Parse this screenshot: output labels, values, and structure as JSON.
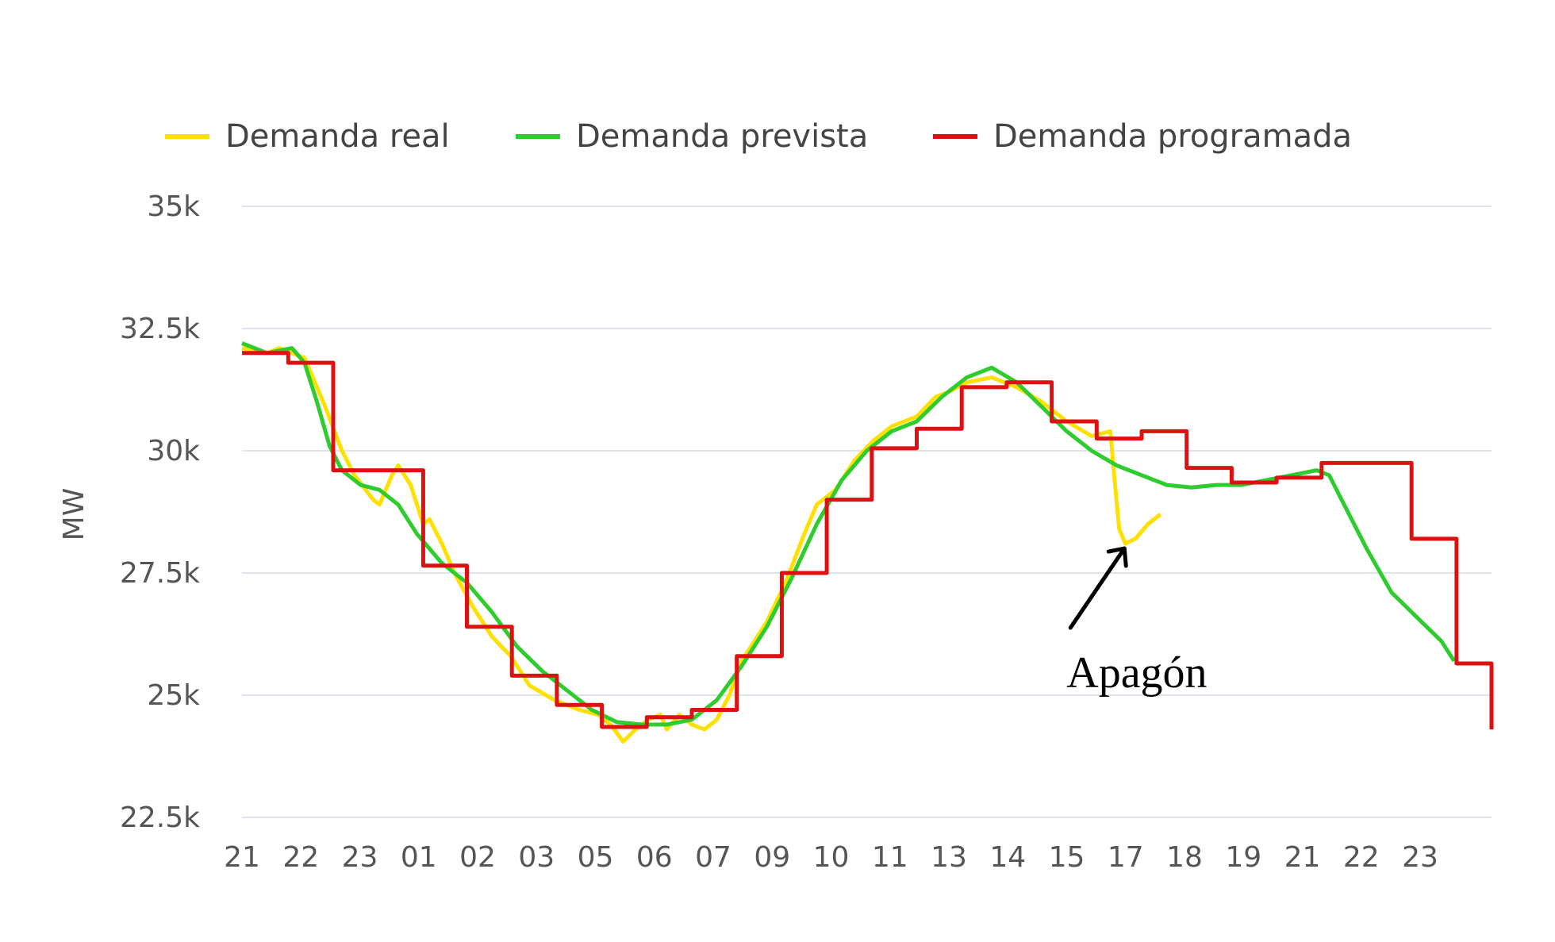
{
  "chart_data": {
    "type": "line",
    "xlabel": "",
    "ylabel": "MW",
    "ylim": [
      22500,
      35000
    ],
    "y_ticks": [
      22500,
      25000,
      27500,
      30000,
      32500,
      35000
    ],
    "y_tick_labels": [
      "22.5k",
      "25k",
      "27.5k",
      "30k",
      "32.5k",
      "35k"
    ],
    "x_tick_labels": [
      "21",
      "22",
      "23",
      "01",
      "02",
      "03",
      "05",
      "06",
      "07",
      "09",
      "10",
      "11",
      "13",
      "14",
      "15",
      "17",
      "18",
      "19",
      "21",
      "22",
      "23"
    ],
    "x_range": [
      0,
      100
    ],
    "grid": true,
    "legend_position": "top",
    "series": [
      {
        "name": "Demanda real",
        "color": "#ffe000",
        "points": [
          [
            0,
            32100
          ],
          [
            2,
            32000
          ],
          [
            3,
            32100
          ],
          [
            4,
            32000
          ],
          [
            5,
            31900
          ],
          [
            6.5,
            31000
          ],
          [
            8,
            30000
          ],
          [
            9,
            29500
          ],
          [
            10.5,
            29000
          ],
          [
            11,
            28900
          ],
          [
            12,
            29500
          ],
          [
            12.5,
            29700
          ],
          [
            13.5,
            29300
          ],
          [
            14.5,
            28500
          ],
          [
            15,
            28600
          ],
          [
            16,
            28100
          ],
          [
            17,
            27500
          ],
          [
            18.5,
            26800
          ],
          [
            20,
            26200
          ],
          [
            21.5,
            25800
          ],
          [
            23,
            25200
          ],
          [
            25,
            24900
          ],
          [
            27,
            24700
          ],
          [
            28.5,
            24600
          ],
          [
            29.5,
            24400
          ],
          [
            30.5,
            24050
          ],
          [
            31.5,
            24300
          ],
          [
            32.5,
            24500
          ],
          [
            33.5,
            24600
          ],
          [
            34,
            24300
          ],
          [
            35,
            24600
          ],
          [
            36,
            24400
          ],
          [
            37,
            24300
          ],
          [
            38,
            24500
          ],
          [
            39,
            25000
          ],
          [
            40,
            25700
          ],
          [
            42,
            26500
          ],
          [
            43.5,
            27300
          ],
          [
            45,
            28300
          ],
          [
            46,
            28900
          ],
          [
            47.5,
            29200
          ],
          [
            49,
            29800
          ],
          [
            50.5,
            30200
          ],
          [
            52,
            30500
          ],
          [
            54,
            30700
          ],
          [
            55.5,
            31100
          ],
          [
            56.5,
            31200
          ],
          [
            58,
            31400
          ],
          [
            60,
            31500
          ],
          [
            62,
            31300
          ],
          [
            64,
            31000
          ],
          [
            66,
            30600
          ],
          [
            68,
            30300
          ],
          [
            69.5,
            30400
          ],
          [
            69.8,
            29500
          ],
          [
            70.2,
            28400
          ],
          [
            70.7,
            28100
          ],
          [
            71.5,
            28200
          ],
          [
            72.5,
            28500
          ],
          [
            73.5,
            28700
          ]
        ]
      },
      {
        "name": "Demanda prevista",
        "color": "#2ecc2e",
        "points": [
          [
            0,
            32200
          ],
          [
            2,
            32000
          ],
          [
            4,
            32100
          ],
          [
            5,
            31800
          ],
          [
            6,
            31000
          ],
          [
            7,
            30100
          ],
          [
            8,
            29600
          ],
          [
            9.5,
            29300
          ],
          [
            11,
            29200
          ],
          [
            12.5,
            28900
          ],
          [
            14,
            28300
          ],
          [
            16,
            27700
          ],
          [
            18,
            27300
          ],
          [
            20,
            26700
          ],
          [
            22,
            26000
          ],
          [
            24,
            25500
          ],
          [
            26,
            25100
          ],
          [
            28,
            24700
          ],
          [
            30,
            24450
          ],
          [
            32,
            24400
          ],
          [
            34,
            24400
          ],
          [
            36,
            24500
          ],
          [
            38,
            24900
          ],
          [
            40,
            25600
          ],
          [
            42,
            26400
          ],
          [
            44,
            27400
          ],
          [
            46,
            28500
          ],
          [
            48,
            29400
          ],
          [
            50,
            30000
          ],
          [
            52,
            30400
          ],
          [
            54,
            30600
          ],
          [
            56,
            31100
          ],
          [
            58,
            31500
          ],
          [
            60,
            31700
          ],
          [
            62,
            31400
          ],
          [
            64,
            30900
          ],
          [
            66,
            30400
          ],
          [
            68,
            30000
          ],
          [
            70,
            29700
          ],
          [
            72,
            29500
          ],
          [
            74,
            29300
          ],
          [
            76,
            29250
          ],
          [
            78,
            29300
          ],
          [
            80,
            29300
          ],
          [
            82,
            29400
          ],
          [
            84,
            29500
          ],
          [
            86,
            29600
          ],
          [
            87,
            29500
          ],
          [
            88,
            29000
          ],
          [
            90,
            28000
          ],
          [
            92,
            27100
          ],
          [
            94,
            26600
          ],
          [
            96,
            26100
          ],
          [
            97,
            25700
          ]
        ]
      },
      {
        "name": "Demanda programada",
        "color": "#dd1111",
        "points": [
          [
            0,
            32000
          ],
          [
            3.7,
            32000
          ],
          [
            3.7,
            31800
          ],
          [
            7.3,
            31800
          ],
          [
            7.3,
            29600
          ],
          [
            14.5,
            29600
          ],
          [
            14.5,
            27650
          ],
          [
            18,
            27650
          ],
          [
            18,
            26400
          ],
          [
            21.6,
            26400
          ],
          [
            21.6,
            25400
          ],
          [
            25.2,
            25400
          ],
          [
            25.2,
            24800
          ],
          [
            28.8,
            24800
          ],
          [
            28.8,
            24350
          ],
          [
            32.4,
            24350
          ],
          [
            32.4,
            24550
          ],
          [
            36,
            24550
          ],
          [
            36,
            24700
          ],
          [
            39.6,
            24700
          ],
          [
            39.6,
            25800
          ],
          [
            43.2,
            25800
          ],
          [
            43.2,
            27500
          ],
          [
            46.8,
            27500
          ],
          [
            46.8,
            29000
          ],
          [
            50.4,
            29000
          ],
          [
            50.4,
            30050
          ],
          [
            54,
            30050
          ],
          [
            54,
            30450
          ],
          [
            57.6,
            30450
          ],
          [
            57.6,
            31300
          ],
          [
            61.2,
            31300
          ],
          [
            61.2,
            31400
          ],
          [
            64.8,
            31400
          ],
          [
            64.8,
            30600
          ],
          [
            68.4,
            30600
          ],
          [
            68.4,
            30250
          ],
          [
            72,
            30250
          ],
          [
            72,
            30400
          ],
          [
            75.6,
            30400
          ],
          [
            75.6,
            29650
          ],
          [
            79.2,
            29650
          ],
          [
            79.2,
            29350
          ],
          [
            82.8,
            29350
          ],
          [
            82.8,
            29450
          ],
          [
            86.4,
            29450
          ],
          [
            86.4,
            29750
          ],
          [
            93.6,
            29750
          ],
          [
            93.6,
            28200
          ],
          [
            97.2,
            28200
          ],
          [
            97.2,
            25650
          ],
          [
            100,
            25650
          ],
          [
            100,
            24300
          ]
        ]
      }
    ],
    "annotation": {
      "text": "Apagón",
      "target": [
        71,
        28100
      ]
    }
  }
}
